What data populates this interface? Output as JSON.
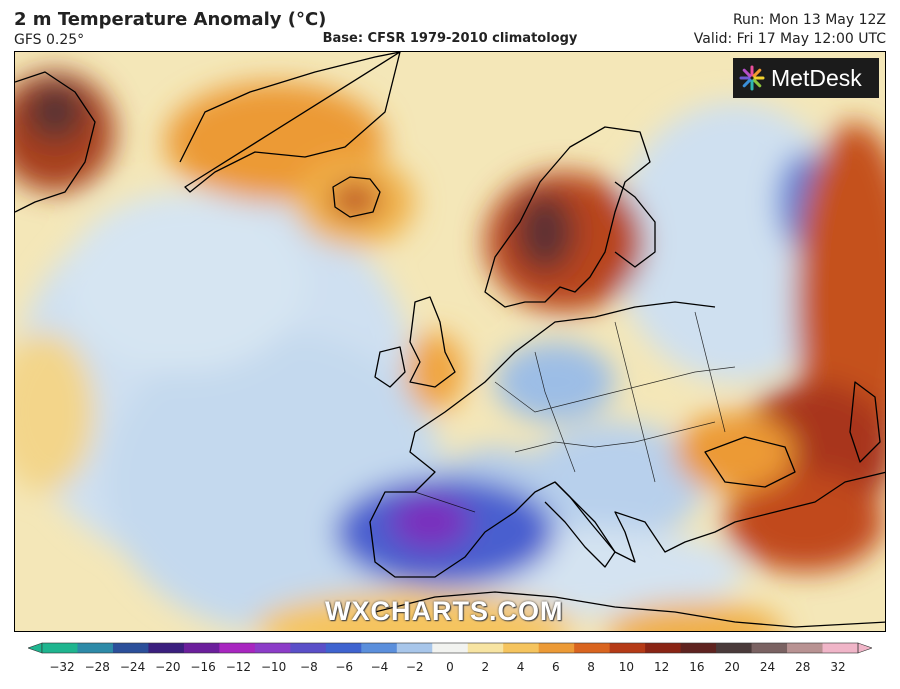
{
  "header": {
    "title": "2 m Temperature Anomaly (°C)",
    "model": "GFS 0.25°",
    "base": "Base: CFSR 1979-2010 climatology",
    "run": "Run: Mon 13 May 12Z",
    "valid": "Valid: Fri 17 May 12:00 UTC"
  },
  "logo": {
    "text": "MetDesk",
    "icon": "metdesk-star-icon"
  },
  "watermark": "WXCHARTS.COM",
  "colorbar": {
    "ticks": [
      "−32",
      "−28",
      "−24",
      "−20",
      "−16",
      "−12",
      "−10",
      "−8",
      "−6",
      "−4",
      "−2",
      "0",
      "2",
      "4",
      "6",
      "8",
      "10",
      "12",
      "16",
      "20",
      "24",
      "28",
      "32"
    ],
    "colors": [
      "#1fb58f",
      "#2d8aa8",
      "#2b4f9a",
      "#3a1f7e",
      "#6b1f9c",
      "#a826c0",
      "#8c3cc8",
      "#5a4fc8",
      "#3f63cf",
      "#5b8fdc",
      "#a8c6ea",
      "#f2f3f0",
      "#f7e4a2",
      "#f5c45e",
      "#ec9a36",
      "#d9641f",
      "#b53a16",
      "#8a2414",
      "#5f2320",
      "#4a3a3a",
      "#7a6262",
      "#b89292",
      "#f0b5c8"
    ]
  },
  "colors": {
    "land_outline": "#000000",
    "cold_strong": "#3b2fbf",
    "cold": "#4a82d6",
    "cool": "#c9ddf0",
    "warm": "#f5c45e",
    "hot": "#b53a16"
  }
}
